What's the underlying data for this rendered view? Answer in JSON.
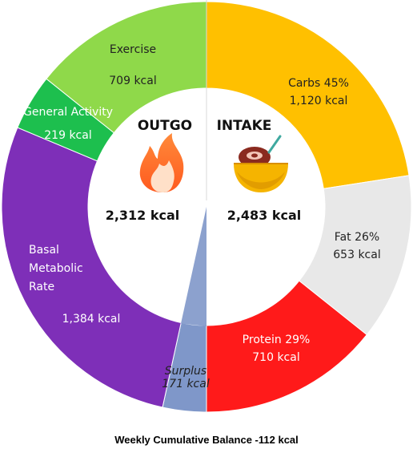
{
  "chart_data": {
    "type": "pie",
    "title": "",
    "footer": "Weekly Cumulative Balance -112 kcal",
    "halves": {
      "outgo": {
        "heading": "OUTGO",
        "total": "2,312 kcal"
      },
      "intake": {
        "heading": "INTAKE",
        "total": "2,483 kcal"
      }
    },
    "segments": [
      {
        "key": "carbs",
        "group": "intake",
        "label": "Carbs 45%",
        "value_label": "1,120 kcal",
        "value": 1120,
        "color": "#FFC000"
      },
      {
        "key": "fat",
        "group": "intake",
        "label": "Fat 26%",
        "value_label": "653 kcal",
        "value": 653,
        "color": "#E8E8E8"
      },
      {
        "key": "protein",
        "group": "intake",
        "label": "Protein 29%",
        "value_label": "710 kcal",
        "value": 710,
        "color": "#FF1A1A"
      },
      {
        "key": "surplus",
        "group": "outgo",
        "label": "Surplus",
        "value_label": "171 kcal",
        "value": 171,
        "color": "#7F97C9"
      },
      {
        "key": "bmr",
        "group": "outgo",
        "label": "Basal Metabolic Rate",
        "label_lines": [
          "Basal",
          "Metabolic",
          "Rate"
        ],
        "value_label": "1,384 kcal",
        "value": 1384,
        "color": "#7E2FB8"
      },
      {
        "key": "general",
        "group": "outgo",
        "label": "General Activity",
        "value_label": "219 kcal",
        "value": 219,
        "color": "#1DBF4E"
      },
      {
        "key": "exercise",
        "group": "outgo",
        "label": "Exercise",
        "value_label": "709 kcal",
        "value": 709,
        "color": "#8FD94A"
      }
    ],
    "icons": {
      "outgo": "fire-icon",
      "intake": "food-bowl-icon"
    }
  }
}
